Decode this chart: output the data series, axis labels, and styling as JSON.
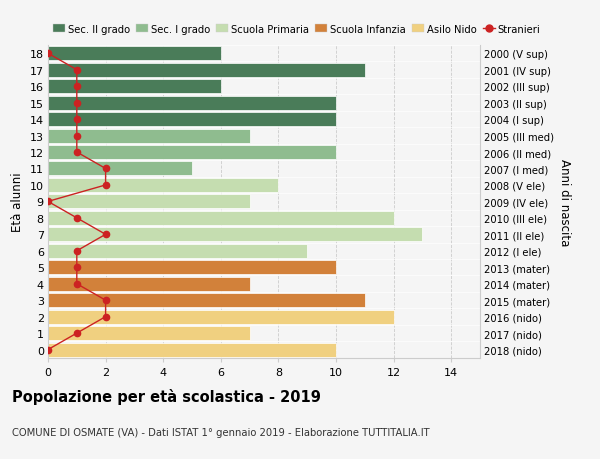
{
  "ages": [
    18,
    17,
    16,
    15,
    14,
    13,
    12,
    11,
    10,
    9,
    8,
    7,
    6,
    5,
    4,
    3,
    2,
    1,
    0
  ],
  "right_labels": [
    "2000 (V sup)",
    "2001 (IV sup)",
    "2002 (III sup)",
    "2003 (II sup)",
    "2004 (I sup)",
    "2005 (III med)",
    "2006 (II med)",
    "2007 (I med)",
    "2008 (V ele)",
    "2009 (IV ele)",
    "2010 (III ele)",
    "2011 (II ele)",
    "2012 (I ele)",
    "2013 (mater)",
    "2014 (mater)",
    "2015 (mater)",
    "2016 (nido)",
    "2017 (nido)",
    "2018 (nido)"
  ],
  "bar_values": [
    6,
    11,
    6,
    10,
    10,
    7,
    10,
    5,
    8,
    7,
    12,
    13,
    9,
    10,
    7,
    11,
    12,
    7,
    10
  ],
  "bar_colors": [
    "#4a7c59",
    "#4a7c59",
    "#4a7c59",
    "#4a7c59",
    "#4a7c59",
    "#8fbc8f",
    "#8fbc8f",
    "#8fbc8f",
    "#c5ddb0",
    "#c5ddb0",
    "#c5ddb0",
    "#c5ddb0",
    "#c5ddb0",
    "#d2813a",
    "#d2813a",
    "#d2813a",
    "#f0d080",
    "#f0d080",
    "#f0d080"
  ],
  "stranieri_values": [
    0,
    1,
    1,
    1,
    1,
    1,
    1,
    2,
    2,
    0,
    1,
    2,
    1,
    1,
    1,
    2,
    2,
    1,
    0
  ],
  "ylabel_left": "Età alunni",
  "ylabel_right": "Anni di nascita",
  "title_main": "Popolazione per età scolastica - 2019",
  "title_sub": "COMUNE DI OSMATE (VA) - Dati ISTAT 1° gennaio 2019 - Elaborazione TUTTITALIA.IT",
  "xlim": [
    0,
    15
  ],
  "xticks": [
    0,
    2,
    4,
    6,
    8,
    10,
    12,
    14
  ],
  "legend_entries": [
    {
      "label": "Sec. II grado",
      "color": "#4a7c59"
    },
    {
      "label": "Sec. I grado",
      "color": "#8fbc8f"
    },
    {
      "label": "Scuola Primaria",
      "color": "#c5ddb0"
    },
    {
      "label": "Scuola Infanzia",
      "color": "#d2813a"
    },
    {
      "label": "Asilo Nido",
      "color": "#f0d080"
    },
    {
      "label": "Stranieri",
      "color": "#cc2222"
    }
  ],
  "background_color": "#f5f5f5",
  "bar_edgecolor": "#ffffff",
  "grid_color": "#cccccc",
  "bar_height": 0.85
}
